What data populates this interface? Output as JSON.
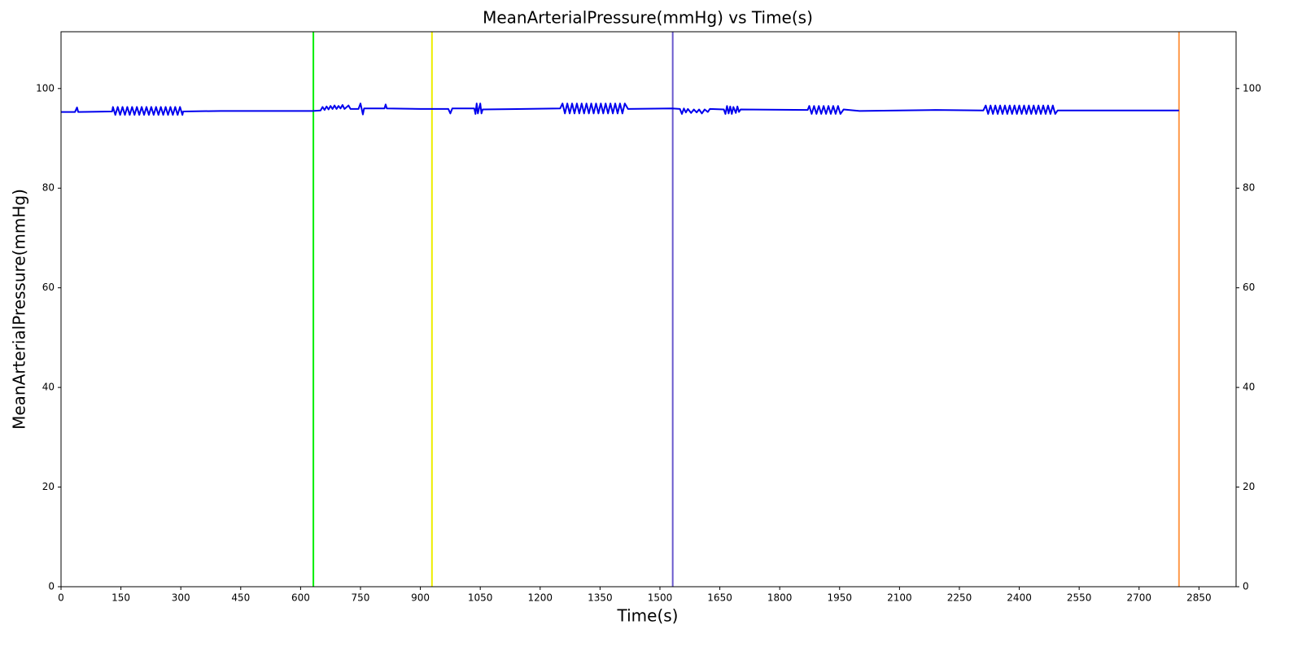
{
  "chart_data": {
    "type": "line",
    "title": "MeanArterialPressure(mmHg) vs Time(s)",
    "x_label": "Time(s)",
    "y_label": "MeanArterialPressure(mmHg)",
    "xlim": [
      0,
      2943
    ],
    "ylim": [
      0,
      111.4
    ],
    "xticks": [
      0,
      150,
      300,
      450,
      600,
      750,
      900,
      1050,
      1200,
      1350,
      1500,
      1650,
      1800,
      1950,
      2100,
      2250,
      2400,
      2550,
      2700,
      2850
    ],
    "yticks": [
      0,
      20,
      40,
      60,
      80,
      100
    ],
    "right_axis_ticks": true,
    "series": [
      {
        "color": "#0000ee",
        "x": [
          0,
          35,
          40,
          43,
          128,
          130,
          136,
          142,
          148,
          154,
          160,
          166,
          172,
          178,
          184,
          190,
          196,
          202,
          208,
          214,
          220,
          226,
          232,
          238,
          244,
          250,
          256,
          262,
          268,
          274,
          280,
          286,
          292,
          298,
          304,
          306,
          400,
          630,
          650,
          655,
          660,
          665,
          670,
          675,
          680,
          685,
          690,
          695,
          700,
          705,
          710,
          720,
          725,
          745,
          750,
          753,
          756,
          759,
          810,
          813,
          816,
          900,
          970,
          975,
          980,
          1035,
          1038,
          1041,
          1044,
          1050,
          1053,
          1056,
          1250,
          1256,
          1262,
          1268,
          1274,
          1280,
          1286,
          1292,
          1298,
          1304,
          1310,
          1316,
          1322,
          1328,
          1334,
          1340,
          1346,
          1352,
          1358,
          1364,
          1370,
          1376,
          1382,
          1388,
          1394,
          1400,
          1406,
          1412,
          1420,
          1530,
          1550,
          1555,
          1560,
          1565,
          1570,
          1578,
          1585,
          1592,
          1598,
          1605,
          1612,
          1620,
          1625,
          1660,
          1664,
          1668,
          1672,
          1676,
          1680,
          1684,
          1690,
          1694,
          1698,
          1702,
          1870,
          1874,
          1880,
          1886,
          1892,
          1898,
          1904,
          1910,
          1916,
          1922,
          1928,
          1934,
          1940,
          1946,
          1952,
          1960,
          2000,
          2190,
          2310,
          2316,
          2322,
          2328,
          2334,
          2340,
          2346,
          2352,
          2358,
          2364,
          2370,
          2376,
          2382,
          2388,
          2394,
          2400,
          2406,
          2412,
          2418,
          2424,
          2430,
          2436,
          2442,
          2448,
          2454,
          2460,
          2466,
          2472,
          2478,
          2484,
          2490,
          2496,
          2800
        ],
        "values": [
          95.3,
          95.3,
          96.2,
          95.3,
          95.4,
          96.3,
          94.7,
          96.3,
          94.7,
          96.3,
          94.7,
          96.3,
          94.7,
          96.3,
          94.7,
          96.3,
          94.7,
          96.3,
          94.7,
          96.3,
          94.7,
          96.3,
          94.7,
          96.3,
          94.7,
          96.3,
          94.7,
          96.3,
          94.7,
          96.3,
          94.7,
          96.3,
          94.7,
          96.3,
          94.7,
          95.4,
          95.5,
          95.5,
          95.6,
          96.3,
          95.7,
          96.4,
          95.8,
          96.5,
          95.9,
          96.6,
          95.9,
          96.5,
          96.0,
          96.7,
          95.9,
          96.6,
          95.9,
          95.9,
          97.0,
          95.9,
          94.8,
          96.0,
          96.0,
          96.8,
          96.0,
          95.9,
          95.9,
          95.0,
          96.0,
          96.0,
          94.9,
          97.0,
          95.0,
          97.0,
          95.0,
          95.8,
          96.0,
          97.0,
          95.0,
          97.0,
          95.0,
          97.0,
          95.0,
          97.0,
          95.0,
          97.0,
          95.0,
          97.0,
          95.0,
          97.0,
          95.0,
          97.0,
          95.0,
          97.0,
          95.0,
          97.0,
          95.0,
          97.0,
          95.0,
          97.0,
          95.0,
          97.0,
          95.0,
          97.0,
          95.9,
          96.0,
          95.9,
          94.9,
          96.0,
          95.2,
          95.9,
          95.1,
          95.8,
          95.2,
          95.8,
          95.0,
          95.8,
          95.3,
          95.9,
          95.8,
          94.9,
          96.5,
          95.0,
          96.4,
          94.9,
          96.3,
          95.1,
          96.4,
          95.3,
          95.8,
          95.7,
          96.5,
          94.9,
          96.5,
          94.9,
          96.5,
          94.9,
          96.5,
          94.9,
          96.5,
          94.9,
          96.5,
          94.9,
          96.5,
          94.9,
          95.8,
          95.5,
          95.7,
          95.6,
          96.6,
          94.9,
          96.6,
          94.9,
          96.6,
          94.9,
          96.6,
          94.9,
          96.6,
          94.9,
          96.6,
          94.9,
          96.6,
          94.9,
          96.6,
          94.9,
          96.6,
          94.9,
          96.6,
          94.9,
          96.6,
          94.9,
          96.6,
          94.9,
          96.6,
          94.9,
          96.6,
          94.9,
          96.6,
          94.9,
          95.6,
          95.6
        ]
      }
    ],
    "vlines": [
      {
        "x": 632,
        "color": "#00ee00"
      },
      {
        "x": 929,
        "color": "#eeee00"
      },
      {
        "x": 1532,
        "color": "#6a5acd"
      },
      {
        "x": 2800,
        "color": "#ff9a4a"
      }
    ]
  }
}
